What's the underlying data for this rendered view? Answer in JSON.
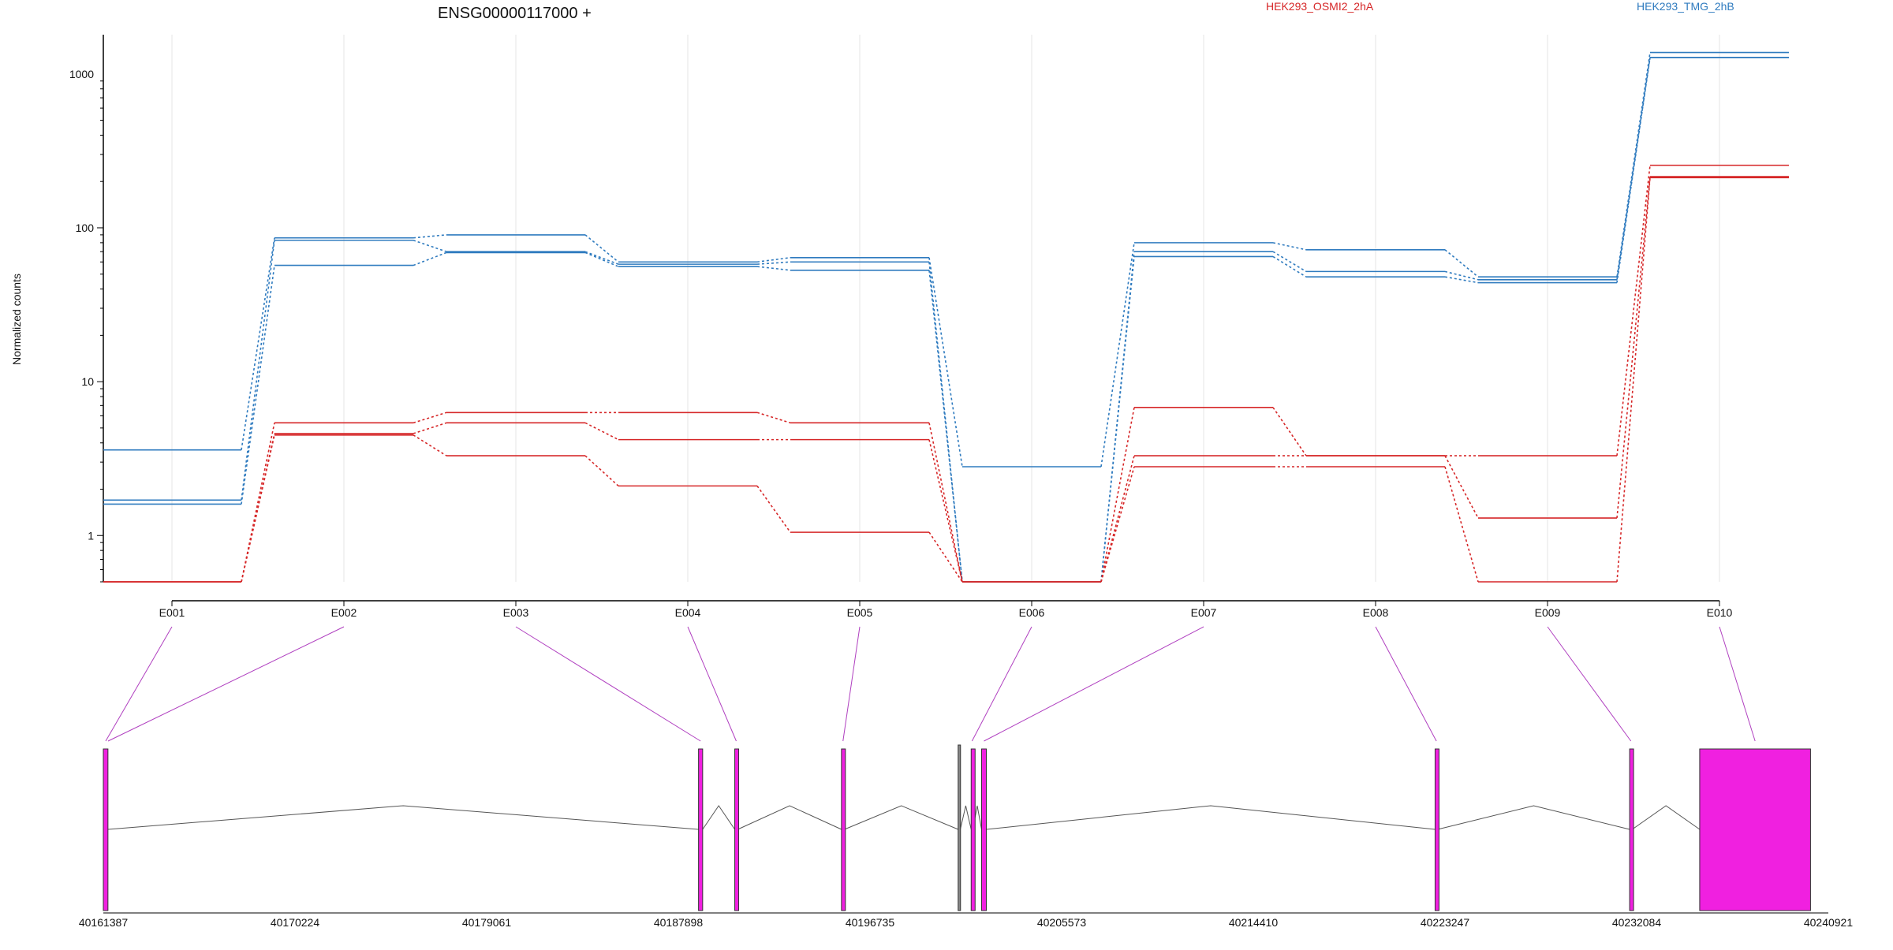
{
  "header": {
    "title": "ENSG00000117000 +",
    "legend": [
      {
        "label": "HEK293_OSMI2_2hA",
        "color": "#d62728"
      },
      {
        "label": "HEK293_TMG_2hB",
        "color": "#2f7bbf"
      }
    ]
  },
  "chart_data": {
    "type": "line",
    "title": "ENSG00000117000 +",
    "xlabel": "",
    "ylabel": "Normalized counts",
    "y_scale": "log",
    "ylim": [
      0.5,
      1800
    ],
    "y_ticks": [
      1,
      10,
      100,
      1000
    ],
    "y_tick_labels": [
      "1",
      "10",
      "100",
      "1000"
    ],
    "grid": "vertical lines at exon centers",
    "legend_placement": "top",
    "categories": [
      "E001",
      "E002",
      "E003",
      "E004",
      "E005",
      "E006",
      "E007",
      "E008",
      "E009",
      "E010"
    ],
    "series": [
      {
        "group": "HEK293_TMG_2hB",
        "color": "#2f7bbf",
        "values": [
          3.6,
          86,
          90,
          60,
          64,
          2.8,
          80,
          72,
          48,
          1380
        ]
      },
      {
        "group": "HEK293_TMG_2hB",
        "color": "#2f7bbf",
        "values": [
          1.7,
          83,
          70,
          58,
          60,
          0.5,
          70,
          52,
          46,
          1280
        ]
      },
      {
        "group": "HEK293_TMG_2hB",
        "color": "#2f7bbf",
        "values": [
          1.6,
          57,
          69,
          56,
          53,
          0.5,
          65,
          48,
          44,
          1280
        ]
      },
      {
        "group": "HEK293_OSMI2_2hA",
        "color": "#d62728",
        "values": [
          0.5,
          5.4,
          6.3,
          6.3,
          5.4,
          0.5,
          6.8,
          3.3,
          3.3,
          255
        ]
      },
      {
        "group": "HEK293_OSMI2_2hA",
        "color": "#d62728",
        "values": [
          0.5,
          4.6,
          5.4,
          4.2,
          4.2,
          0.5,
          3.3,
          3.3,
          1.3,
          215
        ]
      },
      {
        "group": "HEK293_OSMI2_2hA",
        "color": "#d62728",
        "values": [
          0.5,
          4.5,
          3.3,
          2.1,
          1.05,
          0.5,
          2.8,
          2.8,
          0.5,
          212
        ]
      }
    ]
  },
  "gene_model": {
    "genomic_axis_ticks": [
      "40161387",
      "40170224",
      "40179061",
      "40187898",
      "40196735",
      "40205573",
      "40214410",
      "40223247",
      "40232084",
      "40240921"
    ],
    "exon_color": "#f020e0",
    "connector_color": "#b040c0",
    "exons": [
      {
        "id": "E001",
        "start": 40161387,
        "end": 40161600
      },
      {
        "id": "E002",
        "start": 40161387,
        "end": 40161600
      },
      {
        "id": "E003",
        "start": 40188830,
        "end": 40189020
      },
      {
        "id": "E004",
        "start": 40190500,
        "end": 40190640
      },
      {
        "id": "E005",
        "start": 40195420,
        "end": 40195560
      },
      {
        "id": "E006",
        "start": 40201400,
        "end": 40201480
      },
      {
        "id": "E007",
        "start": 40201880,
        "end": 40202100
      },
      {
        "id": "E008",
        "start": 40222790,
        "end": 40222910
      },
      {
        "id": "E009",
        "start": 40231760,
        "end": 40231880
      },
      {
        "id": "E010",
        "start": 40234990,
        "end": 40240100
      }
    ],
    "extra_segment": {
      "start": 40200800,
      "end": 40200900,
      "color": "#888888"
    }
  }
}
